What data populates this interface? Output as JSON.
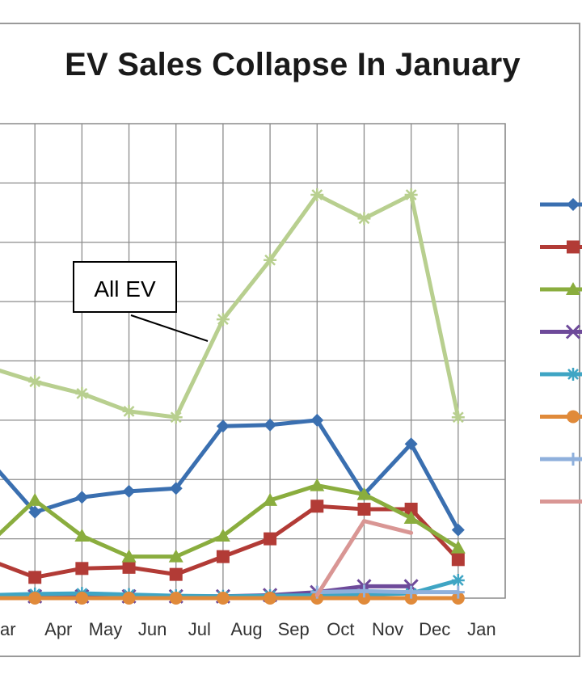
{
  "chart_data": {
    "type": "line",
    "title": "EV Sales Collapse In January",
    "xlabel": "",
    "ylabel": "",
    "categories": [
      "Mar",
      "Apr",
      "May",
      "Jun",
      "Jul",
      "Aug",
      "Sep",
      "Oct",
      "Nov",
      "Dec",
      "Jan"
    ],
    "x_axis_visible_labels": [
      "ar",
      "Apr",
      "May",
      "Jun",
      "Jul",
      "Aug",
      "Sep",
      "Oct",
      "Nov",
      "Dec",
      "Jan"
    ],
    "grid": true,
    "legend_position": "right",
    "series": [
      {
        "color": "#3a6fb0",
        "marker": "diamond",
        "values": [
          23.5,
          14.5,
          17,
          18,
          18.5,
          29,
          29.2,
          30,
          17.5,
          26,
          11.5
        ]
      },
      {
        "color": "#b23b36",
        "marker": "square",
        "values": [
          6.5,
          3.5,
          5,
          5.2,
          4,
          7,
          10,
          15.5,
          15,
          15,
          6.5
        ]
      },
      {
        "color": "#8aad3e",
        "marker": "triangle",
        "values": [
          9,
          16.5,
          10.5,
          7,
          7,
          10.5,
          16.5,
          19,
          17.5,
          13.5,
          8.5
        ]
      },
      {
        "color": "#6e4a9a",
        "marker": "x",
        "values": [
          0.3,
          0.3,
          0.3,
          0.3,
          0.3,
          0.3,
          0.5,
          1,
          2,
          2,
          null
        ]
      },
      {
        "color": "#3fa5c4",
        "marker": "star",
        "values": [
          0.5,
          0.7,
          0.8,
          0.6,
          0.4,
          0.3,
          0.4,
          0.5,
          0.6,
          0.8,
          3
        ]
      },
      {
        "color": "#e08a3a",
        "marker": "circle",
        "values": [
          0,
          0,
          0,
          0,
          0,
          0,
          0,
          0,
          0,
          0,
          0
        ]
      },
      {
        "color": "#8fb0dc",
        "marker": "plus",
        "values": [
          null,
          null,
          null,
          null,
          null,
          null,
          null,
          1,
          1.2,
          1,
          1
        ]
      },
      {
        "color": "#d99694",
        "marker": "none",
        "values": [
          null,
          null,
          null,
          null,
          null,
          null,
          null,
          0.5,
          13,
          11,
          null
        ]
      },
      {
        "name": "All EV",
        "color": "#b8cf8f",
        "marker": "star",
        "values": [
          39,
          36.5,
          34.5,
          31.5,
          30.5,
          47,
          57,
          68,
          64,
          68,
          30.5
        ]
      }
    ],
    "annotations": [
      {
        "text": "All EV"
      }
    ]
  }
}
